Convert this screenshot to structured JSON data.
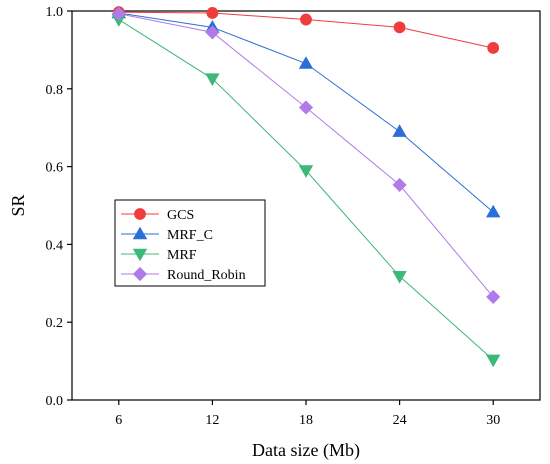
{
  "chart_data": {
    "type": "line",
    "xlabel": "Data size (Mb)",
    "ylabel": "SR",
    "x": [
      6,
      12,
      18,
      24,
      30
    ],
    "xticks": [
      "6",
      "12",
      "18",
      "24",
      "30"
    ],
    "xlim": [
      3,
      33
    ],
    "ylim": [
      0,
      1
    ],
    "yticks": [
      "0.0",
      "0.2",
      "0.4",
      "0.6",
      "0.8",
      "1.0"
    ],
    "grid": false,
    "legend_position": "center-left",
    "series": [
      {
        "name": "GCS",
        "marker": "circle",
        "color": "#f03c3c",
        "values": [
          0.997,
          0.995,
          0.978,
          0.958,
          0.905
        ]
      },
      {
        "name": "MRF_C",
        "marker": "triangle-up",
        "color": "#2a6fd6",
        "values": [
          0.995,
          0.958,
          0.865,
          0.69,
          0.483
        ]
      },
      {
        "name": "MRF",
        "marker": "triangle-down",
        "color": "#3cb878",
        "values": [
          0.978,
          0.826,
          0.59,
          0.318,
          0.103
        ]
      },
      {
        "name": "Round_Robin",
        "marker": "diamond",
        "color": "#b07be8",
        "values": [
          0.993,
          0.945,
          0.752,
          0.553,
          0.265
        ]
      }
    ]
  }
}
